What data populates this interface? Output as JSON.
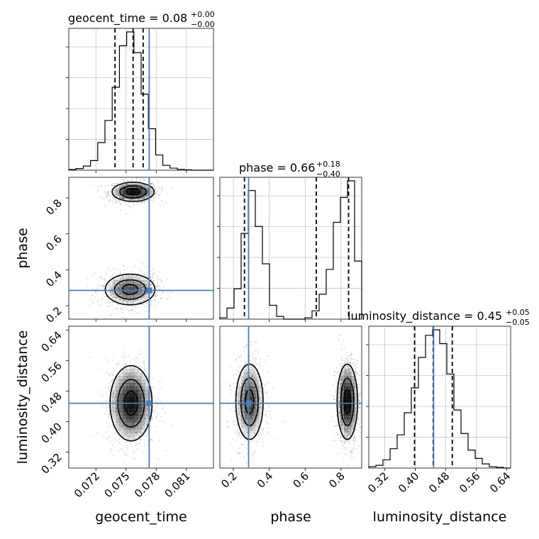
{
  "chart_data": {
    "type": "corner",
    "parameters": [
      "geocent_time",
      "phase",
      "luminosity_distance"
    ],
    "truth": {
      "geocent_time": 0.0773,
      "phase": 0.285,
      "luminosity_distance": 0.448
    },
    "titles": {
      "geocent_time": {
        "name": "geocent_time",
        "median": "0.08",
        "plus": "+0.00",
        "minus": "−0.00"
      },
      "phase": {
        "name": "phase",
        "median": "0.66",
        "plus": "+0.18",
        "minus": "−0.40"
      },
      "luminosity_distance": {
        "name": "luminosity_distance",
        "median": "0.45",
        "plus": "+0.05",
        "minus": "−0.05"
      }
    },
    "axes": {
      "geocent_time": {
        "range": [
          0.0693,
          0.0837
        ],
        "ticks": [
          0.072,
          0.075,
          0.078,
          0.081
        ],
        "tick_labels": [
          "0.072",
          "0.075",
          "0.078",
          "0.081"
        ],
        "label": "geocent_time"
      },
      "phase": {
        "range": [
          0.125,
          0.915
        ],
        "ticks": [
          0.2,
          0.4,
          0.6,
          0.8
        ],
        "tick_labels": [
          "0.2",
          "0.4",
          "0.6",
          "0.8"
        ],
        "label": "phase"
      },
      "luminosity_distance": {
        "range": [
          0.278,
          0.65
        ],
        "ticks": [
          0.32,
          0.4,
          0.48,
          0.56,
          0.64
        ],
        "tick_labels": [
          "0.32",
          "0.40",
          "0.48",
          "0.56",
          "0.64"
        ],
        "label": "luminosity_distance"
      }
    },
    "histograms": {
      "geocent_time": {
        "edges": [
          0.0693,
          0.07002,
          0.07074,
          0.07146,
          0.07218,
          0.0729,
          0.07362,
          0.07434,
          0.07506,
          0.07578,
          0.0765,
          0.07722,
          0.07794,
          0.07866,
          0.07938,
          0.0801,
          0.08082,
          0.08154,
          0.08226,
          0.08298,
          0.0837
        ],
        "counts": [
          0.005,
          0.012,
          0.03,
          0.07,
          0.2,
          0.36,
          0.6,
          0.9,
          1.0,
          0.85,
          0.55,
          0.3,
          0.11,
          0.035,
          0.015,
          0.006,
          0.003,
          0.0,
          0.0,
          0.0
        ],
        "quantiles": [
          0.0739,
          0.0757,
          0.0767
        ]
      },
      "phase": {
        "edges": [
          0.125,
          0.1645,
          0.204,
          0.2435,
          0.283,
          0.3225,
          0.362,
          0.4015,
          0.441,
          0.4805,
          0.52,
          0.5595,
          0.599,
          0.6385,
          0.678,
          0.7175,
          0.757,
          0.7965,
          0.836,
          0.8755,
          0.915
        ],
        "counts": [
          0.01,
          0.08,
          0.22,
          0.62,
          0.93,
          0.67,
          0.4,
          0.1,
          0.02,
          0.0,
          0.0,
          0.0,
          0.01,
          0.06,
          0.18,
          0.36,
          0.7,
          0.88,
          1.0,
          0.42
        ],
        "quantiles": [
          0.262,
          0.662,
          0.842
        ]
      },
      "luminosity_distance": {
        "edges": [
          0.278,
          0.2966,
          0.3152,
          0.3338,
          0.3524,
          0.371,
          0.3896,
          0.4082,
          0.4268,
          0.4454,
          0.464,
          0.4826,
          0.5012,
          0.5198,
          0.5384,
          0.557,
          0.5756,
          0.5942,
          0.6128,
          0.6314,
          0.65
        ],
        "counts": [
          0.01,
          0.02,
          0.06,
          0.14,
          0.24,
          0.4,
          0.58,
          0.8,
          0.96,
          1.0,
          0.9,
          0.68,
          0.42,
          0.25,
          0.13,
          0.07,
          0.03,
          0.01,
          0.005,
          0.0
        ],
        "quantiles": [
          0.398,
          0.447,
          0.497
        ]
      }
    },
    "joint_modes": {
      "phase_vs_geocent_time": [
        {
          "mx": 0.0757,
          "my": 0.834,
          "sx": 0.0011,
          "sy": 0.028,
          "w": 0.45
        },
        {
          "mx": 0.0754,
          "my": 0.29,
          "sx": 0.0013,
          "sy": 0.045,
          "w": 0.55
        }
      ],
      "luminosity_distance_vs_geocent_time": [
        {
          "mx": 0.0755,
          "my": 0.448,
          "sx": 0.0011,
          "sy": 0.052,
          "w": 1.0
        }
      ],
      "luminosity_distance_vs_phase": [
        {
          "mx": 0.29,
          "my": 0.452,
          "sx": 0.04,
          "sy": 0.052,
          "w": 0.5
        },
        {
          "mx": 0.835,
          "my": 0.452,
          "sx": 0.03,
          "sy": 0.052,
          "w": 0.5
        }
      ]
    },
    "grid": true,
    "contour_levels": 3
  }
}
